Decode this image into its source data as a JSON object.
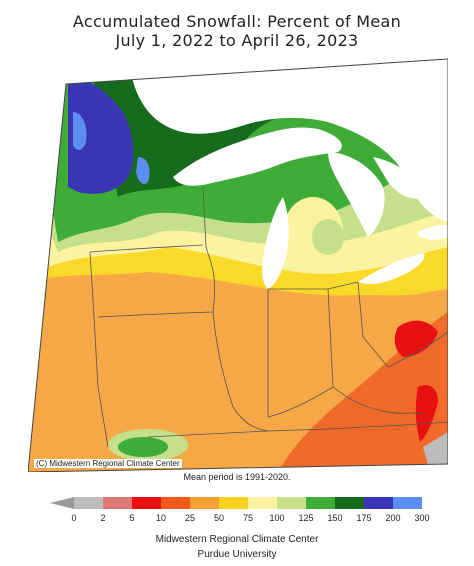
{
  "title_line1": "Accumulated Snowfall: Percent of Mean",
  "title_line2": "July 1, 2022 to April 26, 2023",
  "credit": "(C) Midwestern Regional Climate Center",
  "mean_period": "Mean period is 1991-2020.",
  "footer_line1": "Midwestern Regional Climate Center",
  "footer_line2": "Purdue University",
  "legend": {
    "labels": [
      "0",
      "2",
      "5",
      "10",
      "25",
      "50",
      "75",
      "100",
      "125",
      "150",
      "175",
      "200",
      "300"
    ],
    "colors": [
      "#bdbdbd",
      "#e07878",
      "#e81010",
      "#f05a1c",
      "#f5a133",
      "#f9d21f",
      "#fcf3a0",
      "#c6df8a",
      "#3fac38",
      "#166b1c",
      "#3a35b5",
      "#5b8ef0"
    ],
    "low_arrow_color": "#9a9a9a"
  },
  "map_colors": {
    "lake": "#ffffff",
    "outside": "#ffffff",
    "orange": "#f5a845",
    "yellow": "#f9d92a",
    "pale_yellow": "#fcf3a0",
    "light_green": "#c6df8a",
    "green": "#3fac38",
    "dark_green": "#166b1c",
    "blue": "#3a35b5",
    "light_blue": "#5b8ef0",
    "red_orange": "#f06a2a",
    "red": "#e81010",
    "gray": "#bdbdbd",
    "border": "#555555"
  }
}
